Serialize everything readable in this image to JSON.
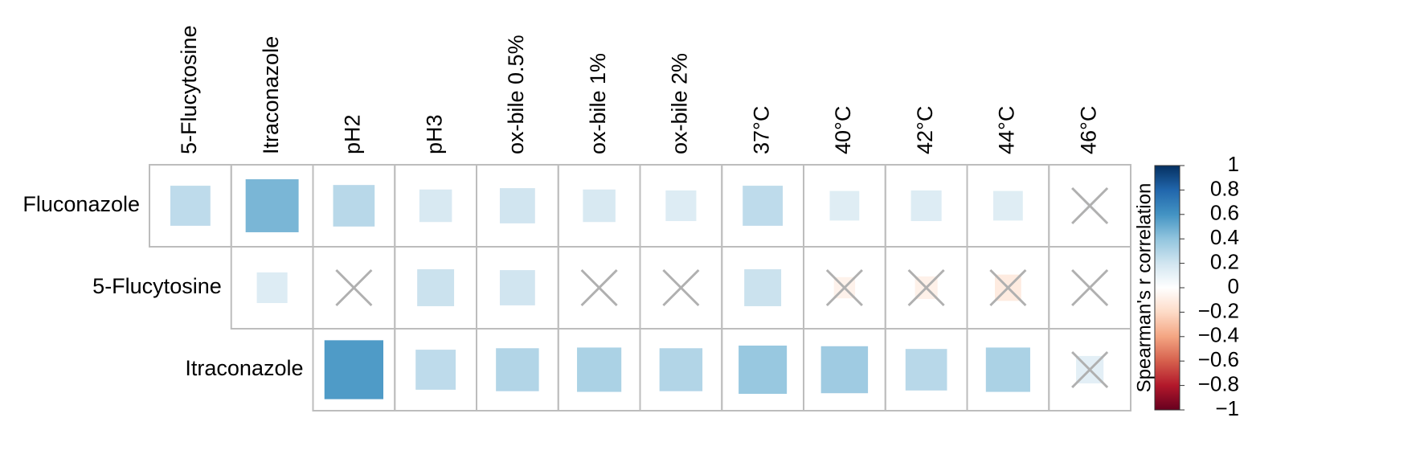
{
  "chart_data": {
    "type": "corrplot",
    "columns": [
      "5-Flucytosine",
      "Itraconazole",
      "pH2",
      "pH3",
      "ox-bile 0.5%",
      "ox-bile 1%",
      "ox-bile 2%",
      "37°C",
      "40°C",
      "42°C",
      "44°C",
      "46°C"
    ],
    "rows": [
      "Fluconazole",
      "5-Flucytosine",
      "Itraconazole"
    ],
    "values": [
      [
        0.26,
        0.46,
        0.28,
        0.17,
        0.2,
        0.17,
        0.15,
        0.26,
        0.14,
        0.15,
        0.14,
        0.02
      ],
      [
        null,
        0.15,
        0.0,
        0.22,
        0.2,
        0.0,
        0.0,
        0.22,
        -0.07,
        -0.08,
        -0.11,
        0.0
      ],
      [
        null,
        null,
        0.57,
        0.26,
        0.3,
        0.32,
        0.3,
        0.38,
        0.36,
        0.28,
        0.32,
        0.12
      ]
    ],
    "crossed": [
      [
        false,
        false,
        false,
        false,
        false,
        false,
        false,
        false,
        false,
        false,
        false,
        true
      ],
      [
        false,
        false,
        true,
        false,
        false,
        true,
        true,
        false,
        true,
        true,
        true,
        true
      ],
      [
        false,
        false,
        false,
        false,
        false,
        false,
        false,
        false,
        false,
        false,
        false,
        true
      ]
    ],
    "colorbar_title": "Spearman's r correlation",
    "clim": [
      -1,
      1
    ],
    "cticks": [
      {
        "value": -1,
        "label": "−1"
      },
      {
        "value": -0.8,
        "label": "−0.8"
      },
      {
        "value": -0.6,
        "label": "−0.6"
      },
      {
        "value": -0.4,
        "label": "−0.4"
      },
      {
        "value": -0.2,
        "label": "−0.2"
      },
      0,
      0.2,
      0.4,
      0.6,
      0.8,
      1
    ],
    "colormap": [
      "#67001F",
      "#B2182B",
      "#D6604D",
      "#F4A582",
      "#FDDBC7",
      "#FFFFFF",
      "#D1E5F0",
      "#92C5DE",
      "#4393C3",
      "#2166AC",
      "#053061"
    ]
  }
}
